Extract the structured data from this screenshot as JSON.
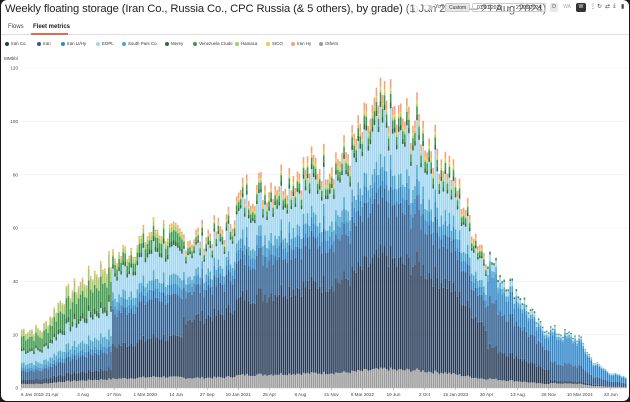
{
  "header": {
    "title": "Weekly floating storage (Iran Co., Russia Co., CPC Russia (& 5 others), by grade)",
    "date_range": "(1 Jan 2019 — 21 Aug 2024)",
    "yoy_label": "YoY",
    "custom_label": "Custom",
    "date_from": "01/01/2019",
    "date_separator": "–",
    "date_to": "21/08/2024",
    "gran_d": "D",
    "gran_wa": "WA",
    "gran_w": "W"
  },
  "tabs": [
    {
      "label": "Flows",
      "active": false
    },
    {
      "label": "Fleet metrics",
      "active": true
    }
  ],
  "colors": {
    "accent": "#e06a4f",
    "series": [
      "#243a57",
      "#2c5c8f",
      "#2f86c9",
      "#9fd4f0",
      "#49a6cc",
      "#2f6b3f",
      "#3f9a4e",
      "#a8c96a",
      "#f2c744",
      "#f4a27a",
      "#9a9a9a"
    ]
  },
  "chart_data": {
    "type": "bar",
    "stacked": true,
    "y_unit_label": "MMbbl",
    "ylim": [
      0,
      120
    ],
    "yticks": [
      "0",
      "20",
      "40",
      "60",
      "80",
      "100",
      "120"
    ],
    "xticks": [
      "6 Jan 2019",
      "21 Apr",
      "4 Aug",
      "17 Nov",
      "1 Mar 2020",
      "14 Jun",
      "27 Sep",
      "10 Jan 2021",
      "25 Apr",
      "8 Aug",
      "21 Nov",
      "6 Mar 2022",
      "19 Jun",
      "2 Oct",
      "15 Jan 2023",
      "30 Apr",
      "13 Aug",
      "26 Nov",
      "10 Mar 2024",
      "23 Jun"
    ],
    "series_names": [
      "Iran Co.",
      "Iran",
      "Iran Lt/Hy",
      "EOPL",
      "South Pars Co.",
      "Merey",
      "Venezuela Crude",
      "Hamaca",
      "SICO",
      "Iran Hy",
      "Others"
    ],
    "totals": [
      {
        "week": 0,
        "total": 22
      },
      {
        "week": 10,
        "total": 22
      },
      {
        "week": 20,
        "total": 34
      },
      {
        "week": 35,
        "total": 43
      },
      {
        "week": 50,
        "total": 51
      },
      {
        "week": 60,
        "total": 56
      },
      {
        "week": 65,
        "total": 60
      },
      {
        "week": 70,
        "total": 60
      },
      {
        "week": 75,
        "total": 57
      },
      {
        "week": 85,
        "total": 57
      },
      {
        "week": 100,
        "total": 60
      },
      {
        "week": 110,
        "total": 75
      },
      {
        "week": 120,
        "total": 76
      },
      {
        "week": 130,
        "total": 80
      },
      {
        "week": 145,
        "total": 84
      },
      {
        "week": 160,
        "total": 88
      },
      {
        "week": 170,
        "total": 99
      },
      {
        "week": 180,
        "total": 109
      },
      {
        "week": 185,
        "total": 101
      },
      {
        "week": 195,
        "total": 101
      },
      {
        "week": 200,
        "total": 94
      },
      {
        "week": 210,
        "total": 85
      },
      {
        "week": 220,
        "total": 66
      },
      {
        "week": 225,
        "total": 56
      },
      {
        "week": 235,
        "total": 44
      },
      {
        "week": 245,
        "total": 36
      },
      {
        "week": 255,
        "total": 24
      },
      {
        "week": 265,
        "total": 21
      },
      {
        "week": 275,
        "total": 19
      },
      {
        "week": 282,
        "total": 10
      },
      {
        "week": 290,
        "total": 6
      },
      {
        "week": 298,
        "total": 4
      }
    ],
    "weeks": 299
  }
}
